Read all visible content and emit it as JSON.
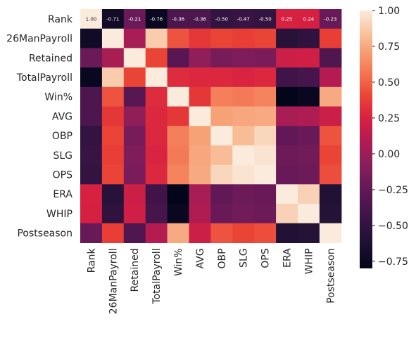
{
  "chart_data": {
    "type": "heatmap",
    "title": "",
    "labels": [
      "Rank",
      "26ManPayroll",
      "Retained",
      "TotalPayroll",
      "Win%",
      "AVG",
      "OBP",
      "SLG",
      "OPS",
      "ERA",
      "WHIP",
      "Postseason"
    ],
    "matrix": [
      [
        1.0,
        -0.71,
        -0.21,
        -0.76,
        -0.36,
        -0.36,
        -0.5,
        -0.47,
        -0.5,
        0.25,
        0.24,
        -0.23
      ],
      [
        -0.71,
        1.0,
        0.05,
        0.88,
        0.45,
        0.35,
        0.4,
        0.38,
        0.4,
        -0.56,
        -0.52,
        0.38
      ],
      [
        -0.21,
        0.05,
        1.0,
        0.4,
        -0.3,
        -0.05,
        -0.15,
        -0.12,
        -0.14,
        0.2,
        0.22,
        -0.35
      ],
      [
        -0.76,
        0.88,
        0.4,
        1.0,
        0.3,
        0.28,
        0.28,
        0.26,
        0.28,
        -0.42,
        -0.4,
        0.1
      ],
      [
        -0.36,
        0.45,
        -0.3,
        0.3,
        1.0,
        0.35,
        0.6,
        0.58,
        0.62,
        -0.8,
        -0.76,
        0.75
      ],
      [
        -0.36,
        0.35,
        -0.05,
        0.28,
        0.35,
        1.0,
        0.72,
        0.74,
        0.75,
        0.05,
        0.08,
        0.2
      ],
      [
        -0.5,
        0.4,
        -0.15,
        0.28,
        0.6,
        0.72,
        1.0,
        0.82,
        0.92,
        -0.25,
        -0.22,
        0.45
      ],
      [
        -0.47,
        0.38,
        -0.12,
        0.26,
        0.58,
        0.74,
        0.82,
        1.0,
        0.97,
        -0.2,
        -0.18,
        0.4
      ],
      [
        -0.5,
        0.4,
        -0.14,
        0.28,
        0.62,
        0.75,
        0.92,
        0.97,
        1.0,
        -0.22,
        -0.2,
        0.43
      ],
      [
        0.25,
        -0.56,
        0.2,
        -0.42,
        -0.8,
        0.05,
        -0.25,
        -0.2,
        -0.22,
        1.0,
        0.9,
        -0.6
      ],
      [
        0.24,
        -0.52,
        0.22,
        -0.4,
        -0.76,
        0.08,
        -0.22,
        -0.18,
        -0.2,
        0.9,
        1.0,
        -0.58
      ],
      [
        -0.23,
        0.38,
        -0.35,
        0.1,
        0.75,
        0.2,
        0.45,
        0.4,
        0.43,
        -0.6,
        -0.58,
        1.0
      ]
    ],
    "annotated_row": 0,
    "annotations": [
      "1.00",
      "-0.71",
      "-0.21",
      "-0.76",
      "-0.36",
      "-0.36",
      "-0.50",
      "-0.47",
      "-0.50",
      "0.25",
      "0.24",
      "-0.23"
    ],
    "colorbar": {
      "vmin": -0.8,
      "vmax": 1.0,
      "ticks": [
        1.0,
        0.75,
        0.5,
        0.25,
        0.0,
        -0.25,
        -0.5,
        -0.75
      ],
      "tick_labels": [
        "1.00",
        "0.75",
        "0.50",
        "0.25",
        "0.00",
        "−0.25",
        "−0.50",
        "−0.75"
      ]
    },
    "colormap": "rocket",
    "grid": false
  }
}
